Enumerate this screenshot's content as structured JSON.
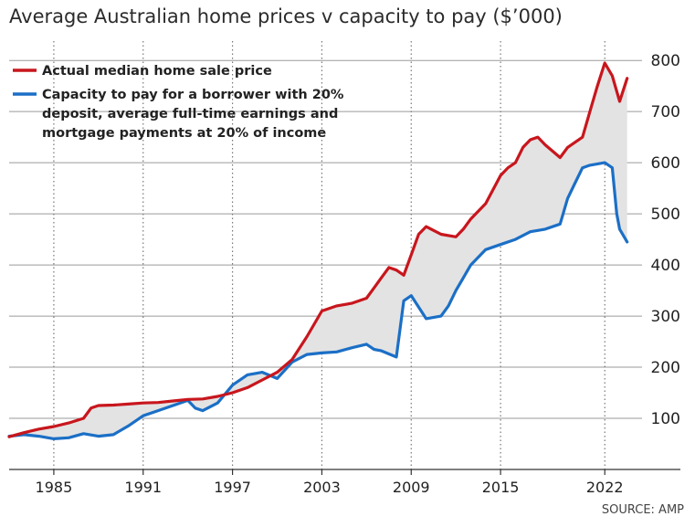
{
  "chart_data": {
    "type": "line",
    "title": "Average Australian home prices v capacity to pay ($’000)",
    "source": "SOURCE: AMP",
    "xlim": [
      1982,
      2024.5
    ],
    "ylim": [
      0,
      820
    ],
    "x_ticks": [
      1985,
      1991,
      1997,
      2003,
      2009,
      2015,
      2022
    ],
    "y_ticks": [
      100,
      200,
      300,
      400,
      500,
      600,
      700,
      800
    ],
    "grid": "horizontal-solid, vertical-dotted",
    "fill_between": true,
    "legend_position": "top-left",
    "series": [
      {
        "name": "Actual median home sale price",
        "color": "#c8161d",
        "points": [
          [
            1982,
            64
          ],
          [
            1983,
            72
          ],
          [
            1984,
            79
          ],
          [
            1985,
            84
          ],
          [
            1986,
            91
          ],
          [
            1987,
            100
          ],
          [
            1987.5,
            120
          ],
          [
            1988,
            125
          ],
          [
            1989,
            126
          ],
          [
            1990,
            128
          ],
          [
            1991,
            130
          ],
          [
            1992,
            131
          ],
          [
            1993,
            134
          ],
          [
            1994,
            137
          ],
          [
            1995,
            138
          ],
          [
            1996,
            143
          ],
          [
            1997,
            150
          ],
          [
            1998,
            160
          ],
          [
            1999,
            175
          ],
          [
            2000,
            190
          ],
          [
            2001,
            215
          ],
          [
            2002,
            260
          ],
          [
            2003,
            310
          ],
          [
            2004,
            320
          ],
          [
            2005,
            325
          ],
          [
            2006,
            335
          ],
          [
            2006.5,
            355
          ],
          [
            2007,
            375
          ],
          [
            2007.5,
            395
          ],
          [
            2008,
            390
          ],
          [
            2008.5,
            380
          ],
          [
            2009,
            420
          ],
          [
            2009.5,
            460
          ],
          [
            2010,
            475
          ],
          [
            2011,
            460
          ],
          [
            2012,
            455
          ],
          [
            2012.5,
            470
          ],
          [
            2013,
            490
          ],
          [
            2014,
            520
          ],
          [
            2015,
            575
          ],
          [
            2015.5,
            590
          ],
          [
            2016,
            600
          ],
          [
            2016.5,
            630
          ],
          [
            2017,
            645
          ],
          [
            2017.5,
            650
          ],
          [
            2018,
            635
          ],
          [
            2019,
            610
          ],
          [
            2019.5,
            630
          ],
          [
            2020,
            640
          ],
          [
            2020.5,
            650
          ],
          [
            2021,
            700
          ],
          [
            2021.5,
            750
          ],
          [
            2022,
            795
          ],
          [
            2022.5,
            770
          ],
          [
            2023,
            720
          ],
          [
            2023.5,
            765
          ]
        ]
      },
      {
        "name": "Capacity to pay for a borrower with 20% deposit, average full-time earnings and mortgage payments at 20% of income",
        "color": "#1b6fc6",
        "points": [
          [
            1982,
            65
          ],
          [
            1983,
            68
          ],
          [
            1984,
            65
          ],
          [
            1985,
            60
          ],
          [
            1986,
            62
          ],
          [
            1987,
            70
          ],
          [
            1988,
            65
          ],
          [
            1989,
            68
          ],
          [
            1990,
            85
          ],
          [
            1991,
            105
          ],
          [
            1992,
            115
          ],
          [
            1993,
            125
          ],
          [
            1994,
            135
          ],
          [
            1994.5,
            120
          ],
          [
            1995,
            115
          ],
          [
            1996,
            130
          ],
          [
            1997,
            165
          ],
          [
            1998,
            185
          ],
          [
            1999,
            190
          ],
          [
            2000,
            178
          ],
          [
            2001,
            210
          ],
          [
            2002,
            225
          ],
          [
            2003,
            228
          ],
          [
            2004,
            230
          ],
          [
            2005,
            238
          ],
          [
            2006,
            245
          ],
          [
            2006.5,
            235
          ],
          [
            2007,
            232
          ],
          [
            2008,
            220
          ],
          [
            2008.5,
            330
          ],
          [
            2009,
            340
          ],
          [
            2010,
            295
          ],
          [
            2011,
            300
          ],
          [
            2011.5,
            320
          ],
          [
            2012,
            350
          ],
          [
            2013,
            400
          ],
          [
            2014,
            430
          ],
          [
            2015,
            440
          ],
          [
            2016,
            450
          ],
          [
            2017,
            465
          ],
          [
            2018,
            470
          ],
          [
            2019,
            480
          ],
          [
            2019.5,
            530
          ],
          [
            2020,
            560
          ],
          [
            2020.5,
            590
          ],
          [
            2021,
            595
          ],
          [
            2022,
            600
          ],
          [
            2022.5,
            590
          ],
          [
            2022.8,
            500
          ],
          [
            2023,
            470
          ],
          [
            2023.5,
            445
          ]
        ]
      }
    ]
  }
}
